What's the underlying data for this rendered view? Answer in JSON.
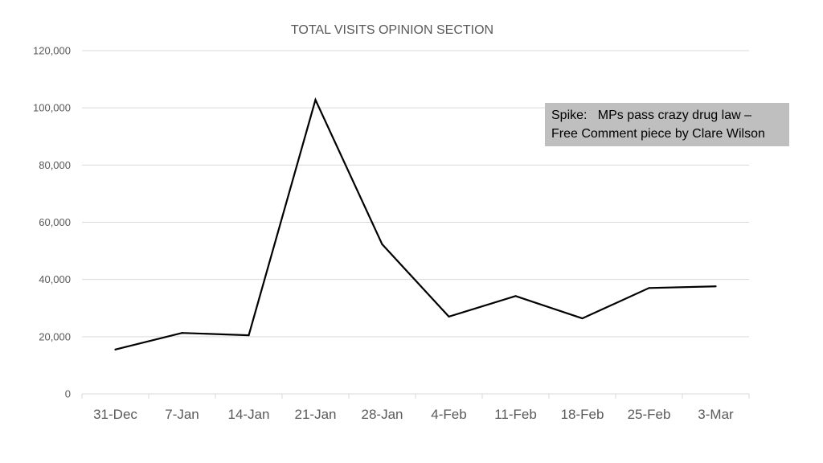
{
  "chart_data": {
    "type": "line",
    "title": "TOTAL VISITS OPINION SECTION",
    "xlabel": "",
    "ylabel": "",
    "categories": [
      "31-Dec",
      "7-Jan",
      "14-Jan",
      "21-Jan",
      "28-Jan",
      "4-Feb",
      "11-Feb",
      "18-Feb",
      "25-Feb",
      "3-Mar"
    ],
    "series": [
      {
        "values": [
          15500,
          21300,
          20500,
          102800,
          52300,
          27000,
          34200,
          26400,
          37000,
          37600
        ]
      }
    ],
    "ylim": [
      0,
      120000
    ],
    "yticks": [
      "0",
      "20,000",
      "40,000",
      "60,000",
      "80,000",
      "100,000",
      "120,000"
    ],
    "ytick_values": [
      0,
      20000,
      40000,
      60000,
      80000,
      100000,
      120000
    ],
    "grid": true,
    "line_color": "#000000",
    "annotation": {
      "line1": "Spike:   MPs pass crazy drug law –",
      "line2": "Free Comment piece by Clare Wilson",
      "background": "#bfbfbf"
    }
  }
}
